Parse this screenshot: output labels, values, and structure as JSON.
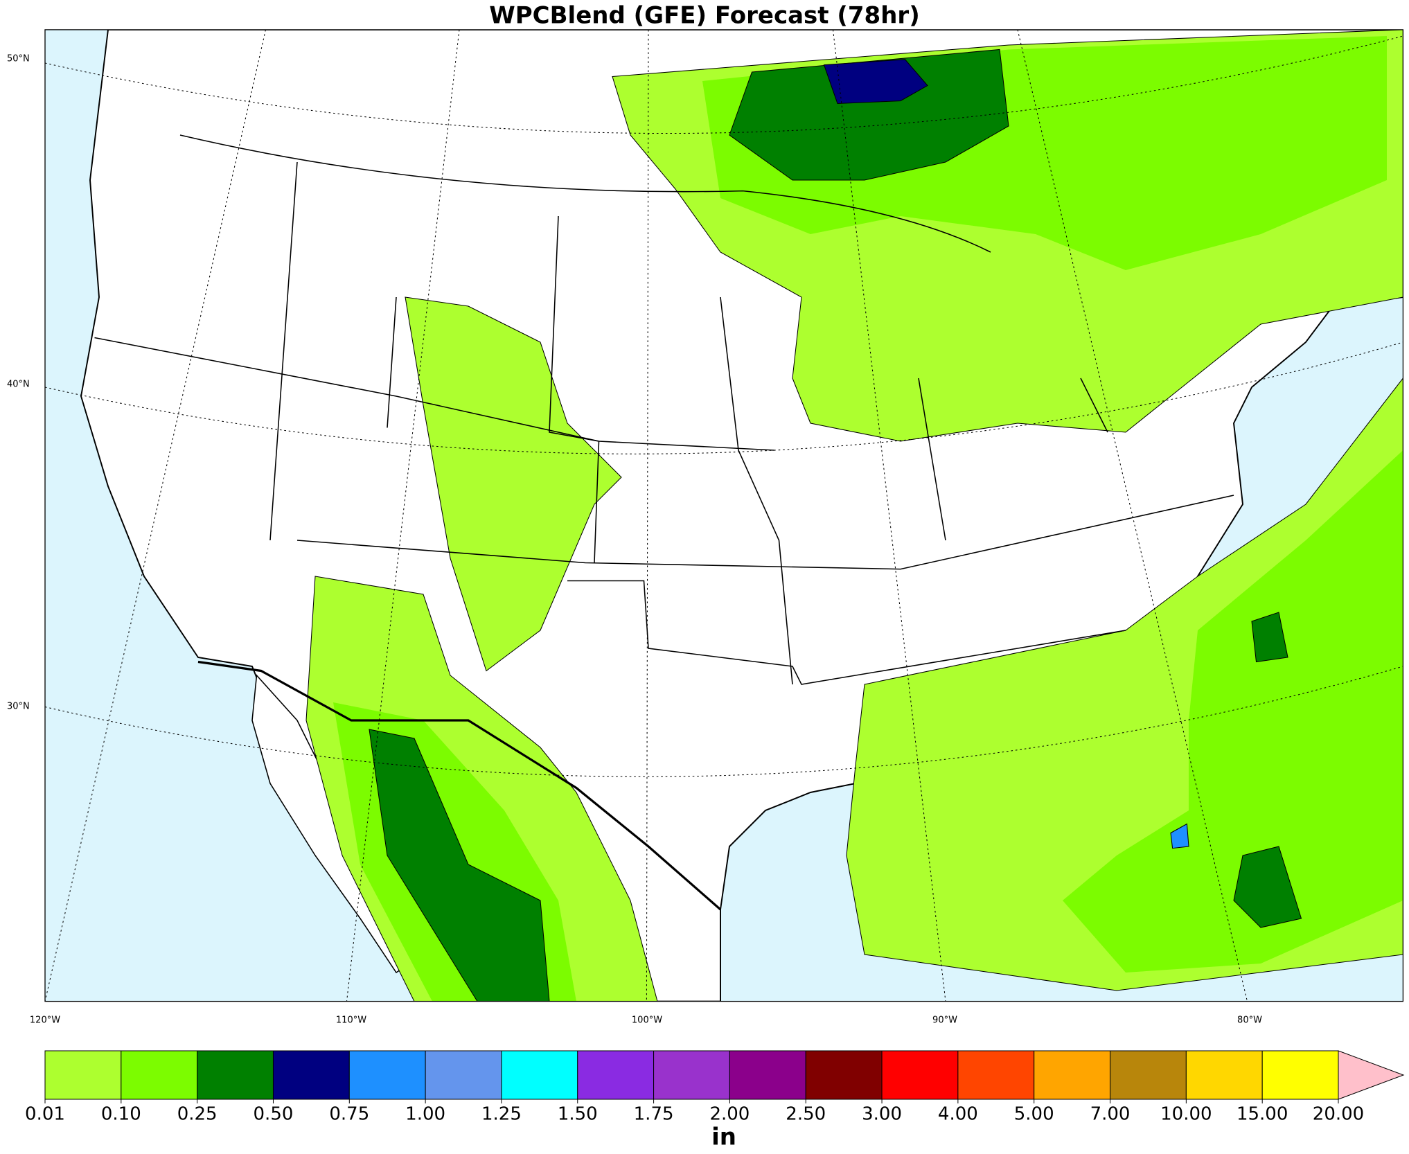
{
  "title": "WPCBlend (GFE) Forecast (78hr)",
  "map": {
    "lat_labels": [
      "50°N",
      "40°N",
      "30°N"
    ],
    "lon_labels": [
      "120°W",
      "110°W",
      "100°W",
      "90°W",
      "80°W"
    ]
  },
  "colorbar": {
    "levels": [
      "0.01",
      "0.10",
      "0.25",
      "0.50",
      "0.75",
      "1.00",
      "1.25",
      "1.50",
      "1.75",
      "2.00",
      "2.50",
      "3.00",
      "4.00",
      "5.00",
      "7.00",
      "10.00",
      "15.00",
      "20.00"
    ],
    "colors": [
      "#adff2f",
      "#7cfc00",
      "#008000",
      "#000080",
      "#1e90ff",
      "#6495ed",
      "#00ffff",
      "#8a2be2",
      "#9932cc",
      "#8b008b",
      "#800000",
      "#ff0000",
      "#ff4500",
      "#ffa500",
      "#b8860b",
      "#ffd700",
      "#ffff00"
    ],
    "extend_color": "#ffc0cb",
    "units": "in"
  }
}
